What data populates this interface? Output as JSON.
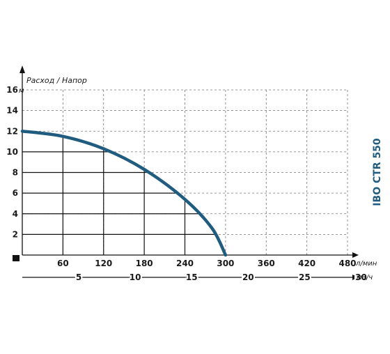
{
  "chart_data": {
    "type": "line",
    "title": "Расход / Напор",
    "model_label": "IBO CTR 550",
    "y_unit": "м",
    "x_unit": "л/мин",
    "x2_unit": "м3/ч",
    "ylim": [
      0,
      16
    ],
    "xlim": [
      0,
      480
    ],
    "y_ticks": [
      2,
      4,
      6,
      8,
      10,
      12,
      14,
      16
    ],
    "x_ticks": [
      60,
      120,
      180,
      240,
      300,
      360,
      420,
      480
    ],
    "x2_ticks": [
      5,
      10,
      15,
      20,
      25,
      30
    ],
    "grid": true,
    "line_color": "#205c80",
    "series": [
      {
        "x": [
          0,
          60,
          120,
          180,
          240,
          280,
          300
        ],
        "y": [
          12,
          11.5,
          10.3,
          8.3,
          5.4,
          2.6,
          0
        ]
      }
    ]
  }
}
